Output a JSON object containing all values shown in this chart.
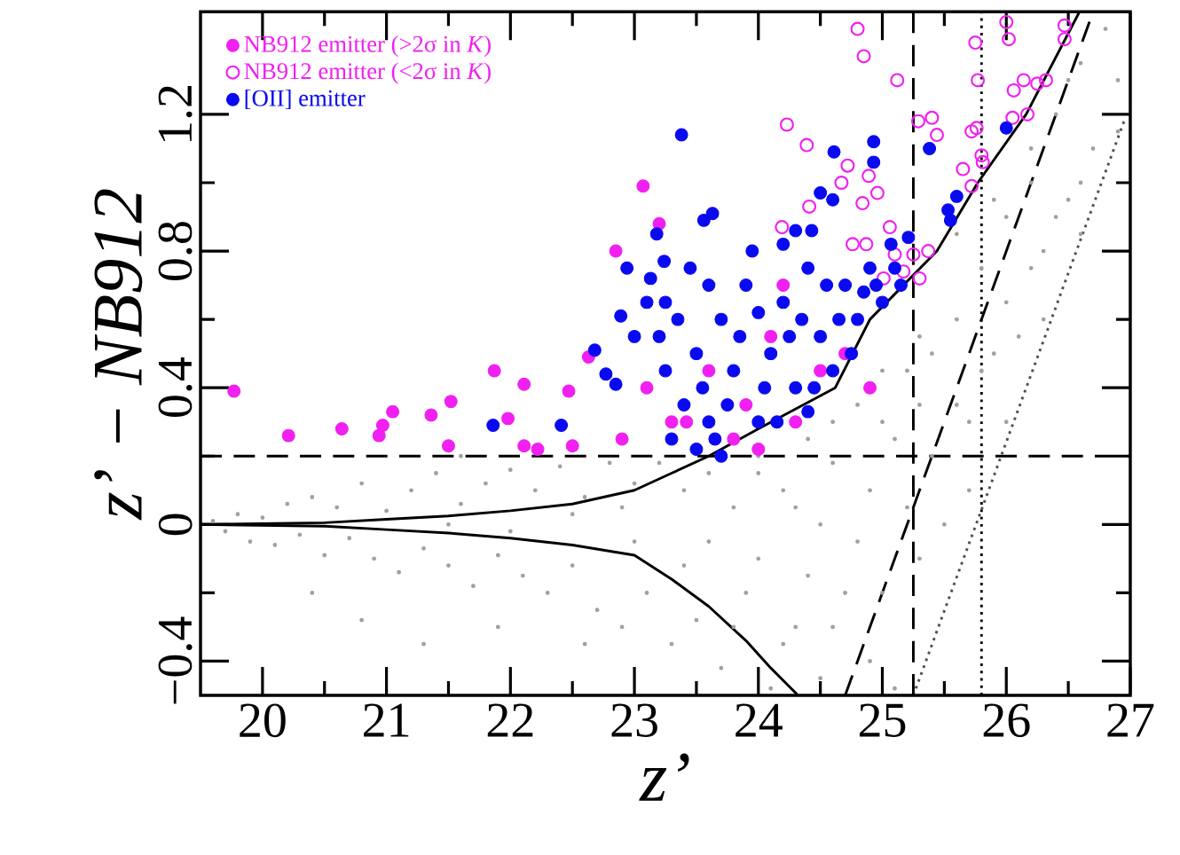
{
  "chart_data": {
    "type": "scatter",
    "xlabel": "z’",
    "ylabel": "z’ − NB912",
    "xlim": [
      19.5,
      27.0
    ],
    "ylim": [
      -0.5,
      1.5
    ],
    "xticks": [
      20,
      21,
      22,
      23,
      24,
      25,
      26,
      27
    ],
    "yticks": [
      {
        "value": -0.4,
        "label": "−0.4"
      },
      0,
      0.4,
      0.8,
      1.2
    ],
    "legend": "top left",
    "grid": false,
    "series": [
      {
        "color": "#a0a0a0",
        "marker": "circle",
        "x": [
          19.6,
          19.7,
          19.8,
          19.9,
          20.0,
          20.1,
          20.2,
          20.3,
          20.4,
          20.5,
          20.6,
          20.7,
          20.8,
          20.9,
          21.0,
          21.1,
          21.2,
          21.3,
          21.4,
          21.5,
          21.6,
          21.7,
          21.8,
          21.9,
          22.0,
          21.3,
          20.8,
          21.9,
          21.6,
          20.4,
          22.1,
          22.2,
          22.3,
          22.4,
          22.5,
          22.6,
          22.7,
          22.8,
          22.9,
          23.0,
          22.6,
          22.9,
          23.1,
          23.2,
          23.3,
          23.4,
          23.5,
          23.6,
          23.7,
          23.8,
          23.9,
          24.0,
          24.1,
          24.2,
          24.3,
          24.4,
          24.5,
          24.6,
          24.7,
          24.8,
          24.9,
          25.0,
          25.1,
          25.2,
          25.3,
          25.4,
          25.5,
          25.6,
          25.7,
          25.8,
          25.9,
          26.0,
          26.1,
          26.2,
          26.3,
          26.4,
          26.5,
          26.6,
          26.7,
          26.8,
          26.9,
          24.0,
          24.2,
          24.4,
          24.6,
          24.8,
          25.0,
          25.2,
          25.4,
          25.6,
          25.8,
          26.0,
          26.2,
          26.4,
          26.6,
          23.4,
          23.6,
          23.8,
          24.0,
          24.3,
          24.6,
          25.0,
          25.3,
          25.6,
          25.9,
          26.2,
          26.5,
          24.9,
          25.1,
          25.3,
          24.5,
          23.0,
          22.5,
          22.0,
          21.5,
          26.0,
          26.3,
          26.6,
          26.9,
          25.7
        ],
        "values": [
          0.01,
          -0.02,
          0.03,
          -0.05,
          0.02,
          -0.06,
          0.06,
          -0.03,
          0.08,
          -0.09,
          0.05,
          -0.04,
          0.12,
          -0.1,
          0.04,
          -0.14,
          0.1,
          -0.07,
          0.15,
          -0.12,
          0.06,
          -0.18,
          0.12,
          -0.09,
          0.16,
          -0.35,
          -0.28,
          -0.3,
          0.2,
          -0.2,
          -0.15,
          0.1,
          -0.2,
          0.17,
          -0.12,
          0.08,
          -0.25,
          0.18,
          -0.3,
          0.12,
          -0.35,
          0.05,
          -0.2,
          0.18,
          -0.35,
          0.1,
          -0.28,
          0.15,
          -0.42,
          0.05,
          -0.2,
          0.2,
          -0.48,
          0.1,
          -0.3,
          0.25,
          -0.45,
          0.18,
          -0.2,
          0.35,
          -0.4,
          0.3,
          -0.48,
          0.45,
          -0.1,
          0.5,
          0.0,
          0.6,
          0.3,
          0.75,
          0.5,
          0.9,
          0.55,
          1.0,
          0.8,
          1.2,
          0.95,
          1.35,
          1.1,
          1.45,
          1.3,
          -0.1,
          -0.35,
          -0.15,
          -0.3,
          -0.05,
          -0.2,
          0.05,
          0.2,
          0.35,
          0.45,
          0.65,
          0.75,
          0.9,
          1.0,
          -0.12,
          -0.05,
          -0.3,
          0.15,
          0.05,
          0.3,
          0.45,
          0.55,
          0.85,
          0.95,
          1.1,
          1.3,
          0.1,
          0.25,
          0.35,
          0.0,
          -0.05,
          0.03,
          -0.02,
          0.0,
          0.3,
          0.6,
          0.85,
          1.15,
          0.1
        ]
      },
      {
        "name": "NB912 emitter (>2σ in *K*)",
        "color": "#f020f0",
        "marker": "circle",
        "x": [
          19.77,
          20.21,
          20.64,
          20.94,
          20.97,
          21.05,
          21.36,
          21.52,
          21.5,
          21.87,
          21.98,
          22.11,
          22.11,
          22.22,
          22.47,
          22.5,
          22.63,
          22.85,
          23.07,
          23.2,
          23.3,
          23.6,
          23.9,
          24.1,
          24.3,
          24.5,
          24.2,
          23.8,
          24.7,
          24.9,
          23.42,
          24.0,
          22.9,
          23.1
        ],
        "values": [
          0.39,
          0.26,
          0.28,
          0.26,
          0.29,
          0.33,
          0.32,
          0.36,
          0.23,
          0.45,
          0.31,
          0.41,
          0.23,
          0.22,
          0.39,
          0.23,
          0.49,
          0.8,
          0.99,
          0.88,
          0.3,
          0.45,
          0.35,
          0.55,
          0.3,
          0.45,
          0.7,
          0.25,
          0.5,
          0.4,
          0.3,
          0.22,
          0.25,
          0.4
        ]
      },
      {
        "name": "NB912 emitter (<2σ in *K*)",
        "color": "#f020f0",
        "marker": "circle-open",
        "x": [
          24.8,
          24.85,
          26.0,
          25.75,
          26.02,
          26.47,
          26.47,
          25.12,
          24.23,
          24.39,
          25.29,
          25.4,
          25.44,
          25.72,
          25.76,
          25.8,
          25.77,
          26.06,
          26.14,
          26.25,
          26.17,
          26.05,
          25.65,
          25.72,
          25.81,
          24.72,
          24.89,
          24.96,
          24.84,
          24.67,
          24.41,
          24.19,
          25.06,
          25.1,
          25.25,
          25.37,
          25.17,
          25.3,
          25.01,
          24.76,
          26.32,
          24.87
        ],
        "values": [
          1.45,
          1.37,
          1.47,
          1.41,
          1.42,
          1.46,
          1.42,
          1.3,
          1.17,
          1.11,
          1.18,
          1.19,
          1.14,
          1.15,
          1.16,
          1.08,
          1.3,
          1.27,
          1.3,
          1.29,
          1.2,
          1.19,
          1.04,
          0.99,
          1.06,
          1.05,
          1.02,
          0.97,
          0.94,
          1.0,
          0.93,
          0.87,
          0.87,
          0.79,
          0.79,
          0.8,
          0.74,
          0.72,
          0.72,
          0.82,
          1.3,
          0.82
        ]
      },
      {
        "name": "[OII] emitter",
        "color": "#0a0af0",
        "marker": "circle",
        "x": [
          21.86,
          22.41,
          22.68,
          22.94,
          23.18,
          23.24,
          23.13,
          22.89,
          23.1,
          23.25,
          23.0,
          22.77,
          22.85,
          23.38,
          24.61,
          24.93,
          24.93,
          25.38,
          24.5,
          24.6,
          23.56,
          23.63,
          24.3,
          24.43,
          26.0,
          25.6,
          25.53,
          25.55,
          25.07,
          25.21,
          23.3,
          23.4,
          23.5,
          23.6,
          23.7,
          23.8,
          23.9,
          24.0,
          24.1,
          24.2,
          24.3,
          24.4,
          24.5,
          24.6,
          24.7,
          24.8,
          24.9,
          25.0,
          25.1,
          23.35,
          23.45,
          23.55,
          23.65,
          23.75,
          23.85,
          23.95,
          24.05,
          24.15,
          24.25,
          24.35,
          24.45,
          24.55,
          24.65,
          24.75,
          24.85,
          24.95,
          23.25,
          23.5,
          23.7,
          24.4,
          25.15,
          23.2,
          24.0,
          24.2,
          23.6
        ],
        "values": [
          0.29,
          0.29,
          0.51,
          0.75,
          0.85,
          0.77,
          0.72,
          0.61,
          0.65,
          0.65,
          0.55,
          0.44,
          0.41,
          1.14,
          1.09,
          1.12,
          1.06,
          1.1,
          0.97,
          0.95,
          0.89,
          0.91,
          0.86,
          0.86,
          1.16,
          0.96,
          0.92,
          0.89,
          0.82,
          0.84,
          0.25,
          0.35,
          0.5,
          0.3,
          0.6,
          0.45,
          0.7,
          0.3,
          0.5,
          0.65,
          0.4,
          0.75,
          0.55,
          0.45,
          0.7,
          0.6,
          0.75,
          0.65,
          0.75,
          0.6,
          0.75,
          0.4,
          0.25,
          0.35,
          0.55,
          0.8,
          0.4,
          0.3,
          0.55,
          0.6,
          0.4,
          0.7,
          0.6,
          0.5,
          0.68,
          0.7,
          0.45,
          0.22,
          0.2,
          0.33,
          0.7,
          0.55,
          0.62,
          0.82,
          0.7
        ]
      },
      {
        "type": "line",
        "color": "#000000",
        "line_style": "solid",
        "x": [
          19.5,
          20.5,
          21.0,
          21.5,
          22.0,
          22.5,
          23.0,
          23.3,
          23.6,
          24.0,
          24.62,
          24.9,
          25.44,
          25.77,
          26.16,
          26.59
        ],
        "values": [
          0.0,
          0.005,
          0.015,
          0.025,
          0.04,
          0.06,
          0.1,
          0.15,
          0.2,
          0.28,
          0.4,
          0.6,
          0.8,
          1.0,
          1.2,
          1.5
        ]
      },
      {
        "type": "line",
        "color": "#000000",
        "line_style": "solid",
        "x": [
          19.5,
          20.5,
          21.0,
          21.5,
          22.0,
          22.5,
          23.0,
          23.3,
          23.6,
          23.9,
          24.1,
          24.32
        ],
        "values": [
          0.0,
          -0.005,
          -0.015,
          -0.025,
          -0.04,
          -0.06,
          -0.09,
          -0.16,
          -0.24,
          -0.34,
          -0.42,
          -0.5
        ]
      },
      {
        "type": "line",
        "color": "#000000",
        "line_style": "dashed",
        "x": [
          24.7,
          26.7
        ],
        "values": [
          -0.5,
          1.5
        ]
      },
      {
        "type": "line",
        "color": "#505050",
        "line_style": "dotted",
        "x": [
          25.25,
          26.95
        ],
        "values": [
          -0.5,
          1.18
        ]
      }
    ],
    "ref_lines": [
      {
        "axis": "y",
        "value": 0.2,
        "line_style": "dashed"
      },
      {
        "axis": "x",
        "value": 25.25,
        "line_style": "dashed"
      },
      {
        "axis": "x",
        "value": 25.8,
        "line_style": "dotted"
      }
    ]
  }
}
